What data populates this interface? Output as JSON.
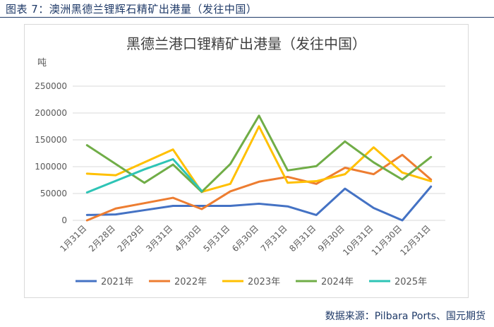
{
  "figure_caption": "图表 7：澳洲黑德兰锂辉石精矿出港量（发往中国）",
  "source_text": "数据来源：Pilbara Ports、国元期货",
  "colors": {
    "caption": "#1f3a68",
    "grid": "#d9d9d9",
    "axis_text": "#595959",
    "title": "#404040"
  },
  "chart_data": {
    "type": "line",
    "title": "黑德兰港口锂精矿出港量（发往中国）",
    "ylabel": "吨",
    "xlabel": "",
    "ylim": [
      0,
      250000
    ],
    "yticks": [
      0,
      50000,
      100000,
      150000,
      200000,
      250000
    ],
    "ytick_labels": [
      "0",
      "50000",
      "100000",
      "150000",
      "200000",
      "250000"
    ],
    "grid": "horizontal",
    "legend_position": "bottom",
    "categories": [
      "1月31日",
      "2月28日",
      "2月29日",
      "3月31日",
      "4月30日",
      "5月31日",
      "6月30日",
      "7月31日",
      "8月31日",
      "9月30日",
      "10月31日",
      "11月30日",
      "12月31日"
    ],
    "series": [
      {
        "name": "2021年",
        "color": "#4472c4",
        "values": [
          10000,
          11000,
          19000,
          27000,
          27000,
          27000,
          31000,
          26000,
          10000,
          59000,
          23000,
          0,
          63000
        ]
      },
      {
        "name": "2022年",
        "color": "#ed7d31",
        "values": [
          0,
          22000,
          32000,
          42000,
          21000,
          54000,
          72000,
          81000,
          68000,
          98000,
          86000,
          122000,
          76000
        ]
      },
      {
        "name": "2023年",
        "color": "#ffc000",
        "values": [
          87000,
          84000,
          108000,
          132000,
          53000,
          68000,
          175000,
          70000,
          73000,
          86000,
          136000,
          89000,
          73000
        ]
      },
      {
        "name": "2024年",
        "color": "#70ad47",
        "values": [
          140000,
          null,
          70000,
          104000,
          53000,
          105000,
          195000,
          93000,
          101000,
          147000,
          108000,
          76000,
          118000
        ]
      },
      {
        "name": "2025年",
        "color": "#2ec4b6",
        "values": [
          52000,
          null,
          95000,
          114000,
          55000,
          null,
          null,
          null,
          null,
          null,
          null,
          null,
          null
        ]
      }
    ]
  }
}
